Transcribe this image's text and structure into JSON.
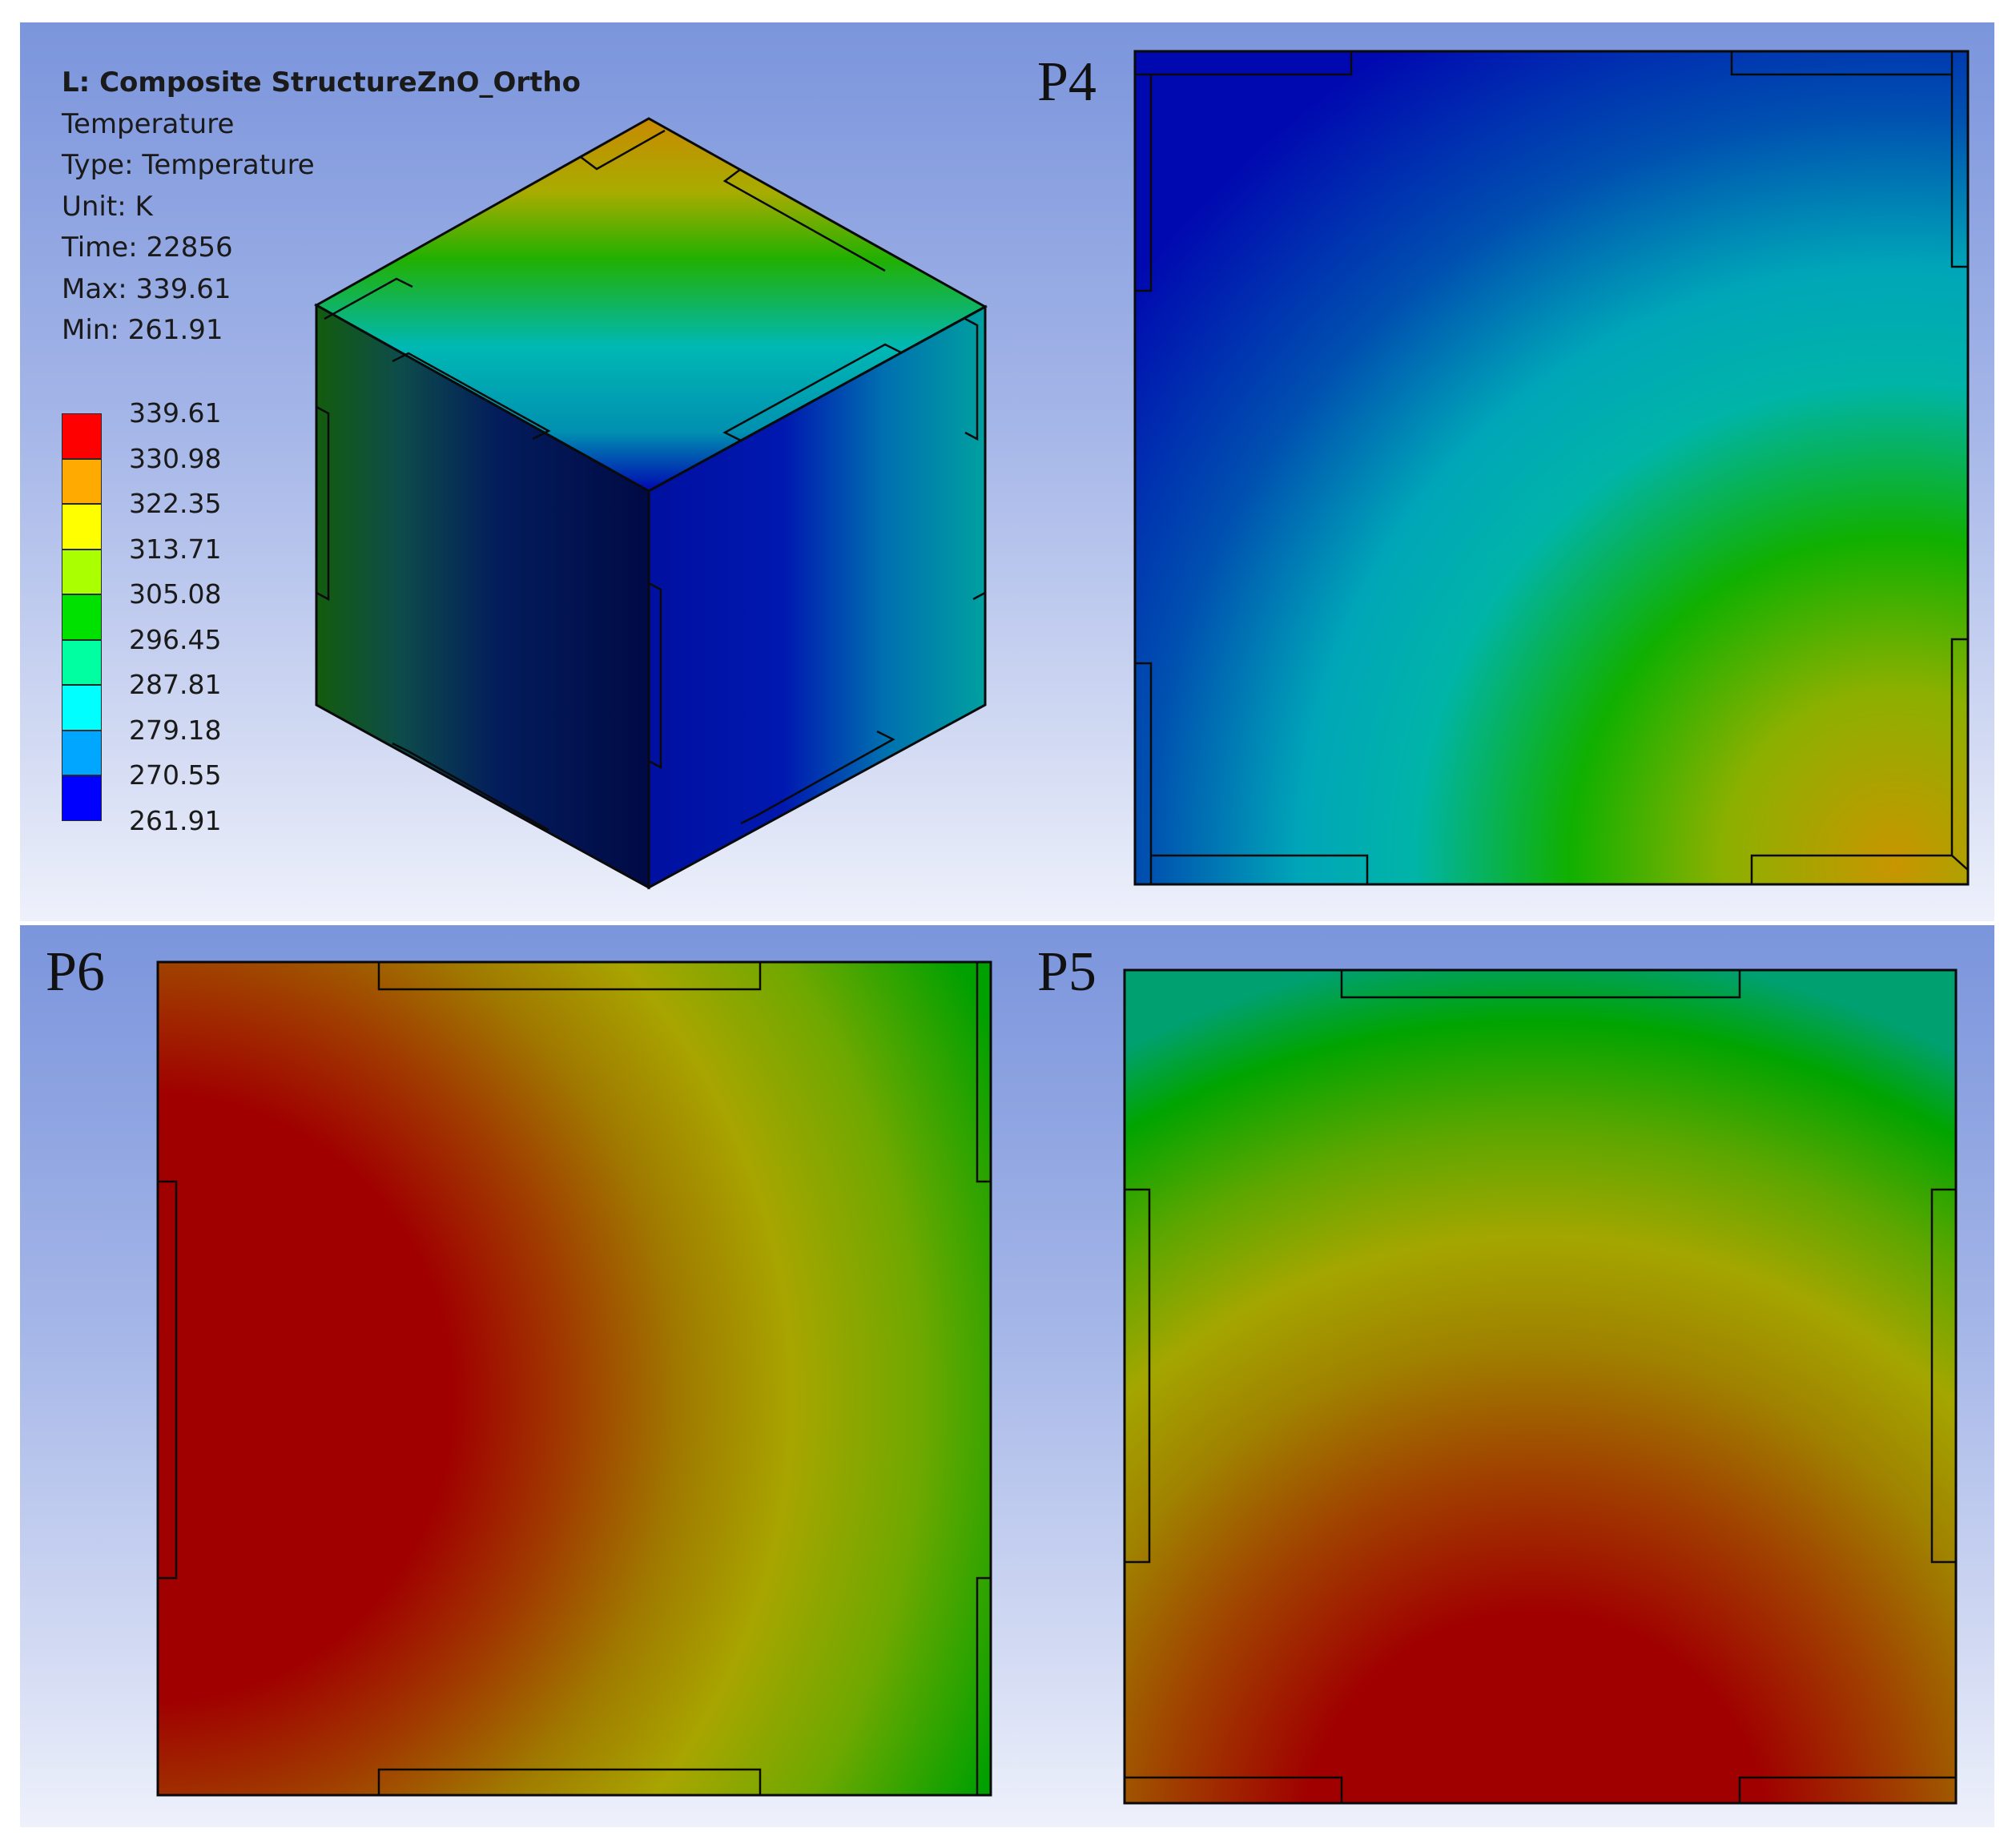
{
  "result": {
    "title": "L: Composite StructureZnO_Ortho",
    "name": "Temperature",
    "type": "Type: Temperature",
    "unit": "Unit: K",
    "time": "Time: 22856",
    "max": "Max: 339.61",
    "min": "Min: 261.91"
  },
  "legend": {
    "values": [
      "339.61",
      "330.98",
      "322.35",
      "313.71",
      "305.08",
      "296.45",
      "287.81",
      "279.18",
      "270.55",
      "261.91"
    ],
    "colors": [
      "#ff0000",
      "#ffaa00",
      "#ffff00",
      "#aaff00",
      "#00e100",
      "#00ffa0",
      "#00ffff",
      "#00a6ff",
      "#0000ff"
    ]
  },
  "panels": {
    "p4": "P4",
    "p6": "P6",
    "p5": "P5"
  },
  "colors": {
    "background_top": "#7b95dc",
    "background_bottom": "#eef1fb",
    "hot": "#a00000",
    "cold": "#00009a",
    "outline": "#0a0a0a"
  }
}
